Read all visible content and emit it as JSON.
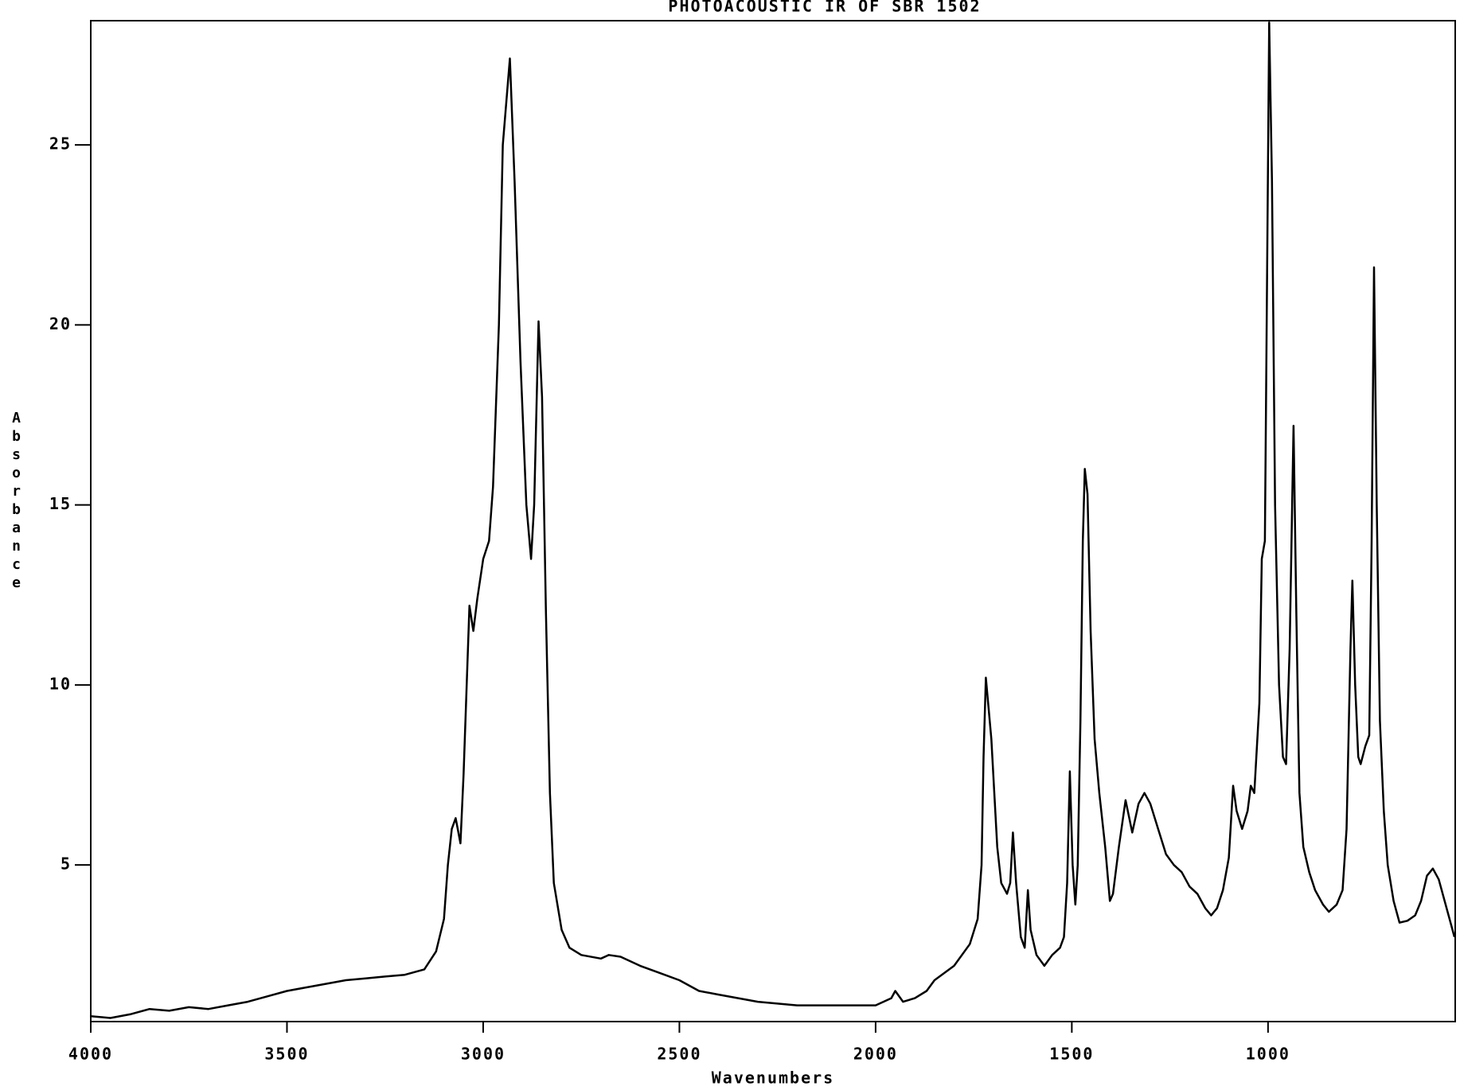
{
  "chart_data": {
    "type": "line",
    "title": "PHOTOACOUSTIC IR OF SBR 1502",
    "x_label": "Wavenumbers",
    "y_label": "Absorbance",
    "x": [
      4000,
      3950,
      3900,
      3850,
      3800,
      3750,
      3700,
      3650,
      3600,
      3550,
      3500,
      3450,
      3400,
      3350,
      3300,
      3250,
      3200,
      3150,
      3120,
      3100,
      3090,
      3080,
      3070,
      3058,
      3050,
      3035,
      3025,
      3015,
      3000,
      2985,
      2975,
      2960,
      2950,
      2932,
      2920,
      2905,
      2890,
      2878,
      2870,
      2859,
      2850,
      2840,
      2830,
      2820,
      2800,
      2780,
      2750,
      2700,
      2680,
      2650,
      2600,
      2550,
      2500,
      2450,
      2400,
      2350,
      2300,
      2250,
      2200,
      2100,
      2000,
      1960,
      1950,
      1930,
      1900,
      1870,
      1850,
      1800,
      1760,
      1740,
      1730,
      1725,
      1719,
      1705,
      1690,
      1680,
      1665,
      1657,
      1650,
      1642,
      1630,
      1620,
      1612,
      1605,
      1590,
      1570,
      1550,
      1530,
      1520,
      1512,
      1505,
      1498,
      1491,
      1485,
      1478,
      1472,
      1467,
      1460,
      1452,
      1442,
      1430,
      1415,
      1403,
      1395,
      1380,
      1363,
      1346,
      1330,
      1315,
      1300,
      1280,
      1260,
      1240,
      1220,
      1200,
      1180,
      1160,
      1145,
      1130,
      1115,
      1100,
      1089,
      1080,
      1066,
      1052,
      1044,
      1035,
      1022,
      1016,
      1008,
      1002,
      997,
      990,
      982,
      972,
      962,
      954,
      945,
      935,
      928,
      920,
      910,
      895,
      880,
      860,
      845,
      825,
      810,
      800,
      790,
      785,
      778,
      770,
      764,
      752,
      742,
      736,
      730,
      723,
      715,
      705,
      695,
      680,
      665,
      645,
      625,
      610,
      595,
      580,
      565,
      550,
      535,
      525
    ],
    "values": [
      0.8,
      0.75,
      0.85,
      1.0,
      0.95,
      1.05,
      1.0,
      1.1,
      1.2,
      1.35,
      1.5,
      1.6,
      1.7,
      1.8,
      1.85,
      1.9,
      1.95,
      2.1,
      2.6,
      3.5,
      5.0,
      6.0,
      6.3,
      5.6,
      7.5,
      12.2,
      11.5,
      12.4,
      13.5,
      14.0,
      15.5,
      20,
      25,
      27.4,
      24,
      19,
      15,
      13.5,
      15,
      20.1,
      18,
      12,
      7,
      4.5,
      3.2,
      2.7,
      2.5,
      2.4,
      2.5,
      2.45,
      2.2,
      2.0,
      1.8,
      1.5,
      1.4,
      1.3,
      1.2,
      1.15,
      1.1,
      1.1,
      1.1,
      1.3,
      1.5,
      1.2,
      1.3,
      1.5,
      1.8,
      2.2,
      2.8,
      3.5,
      5.0,
      8.0,
      10.2,
      8.5,
      5.5,
      4.5,
      4.2,
      4.5,
      5.9,
      4.5,
      3.0,
      2.7,
      4.3,
      3.2,
      2.5,
      2.2,
      2.5,
      2.7,
      3.0,
      4.5,
      7.6,
      5.0,
      3.9,
      5.0,
      9,
      14,
      16.0,
      15.3,
      11.5,
      8.5,
      7.0,
      5.5,
      4.0,
      4.2,
      5.5,
      6.8,
      5.9,
      6.7,
      7.0,
      6.7,
      6.0,
      5.3,
      5.0,
      4.8,
      4.4,
      4.2,
      3.8,
      3.6,
      3.8,
      4.3,
      5.2,
      7.2,
      6.5,
      6.0,
      6.5,
      7.2,
      7.0,
      9.5,
      13.5,
      14.0,
      22,
      28.4,
      24,
      15,
      10,
      8.0,
      7.8,
      11,
      17.2,
      12,
      7.0,
      5.5,
      4.8,
      4.3,
      3.9,
      3.7,
      3.9,
      4.3,
      6.0,
      11,
      12.9,
      10,
      8.0,
      7.8,
      8.3,
      8.6,
      14,
      21.6,
      15,
      9,
      6.5,
      5.0,
      4.0,
      3.4,
      3.45,
      3.6,
      4.0,
      4.7,
      4.9,
      4.6,
      4.0,
      3.4,
      3.0
    ],
    "color": "#000000",
    "xlim": [
      4000,
      523
    ],
    "xticks": [
      4000,
      3500,
      3000,
      2500,
      2000,
      1500,
      1000
    ],
    "ylim": [
      0.65,
      28.45
    ],
    "yticks": [
      5,
      10,
      15,
      20,
      25
    ],
    "grid": false
  }
}
